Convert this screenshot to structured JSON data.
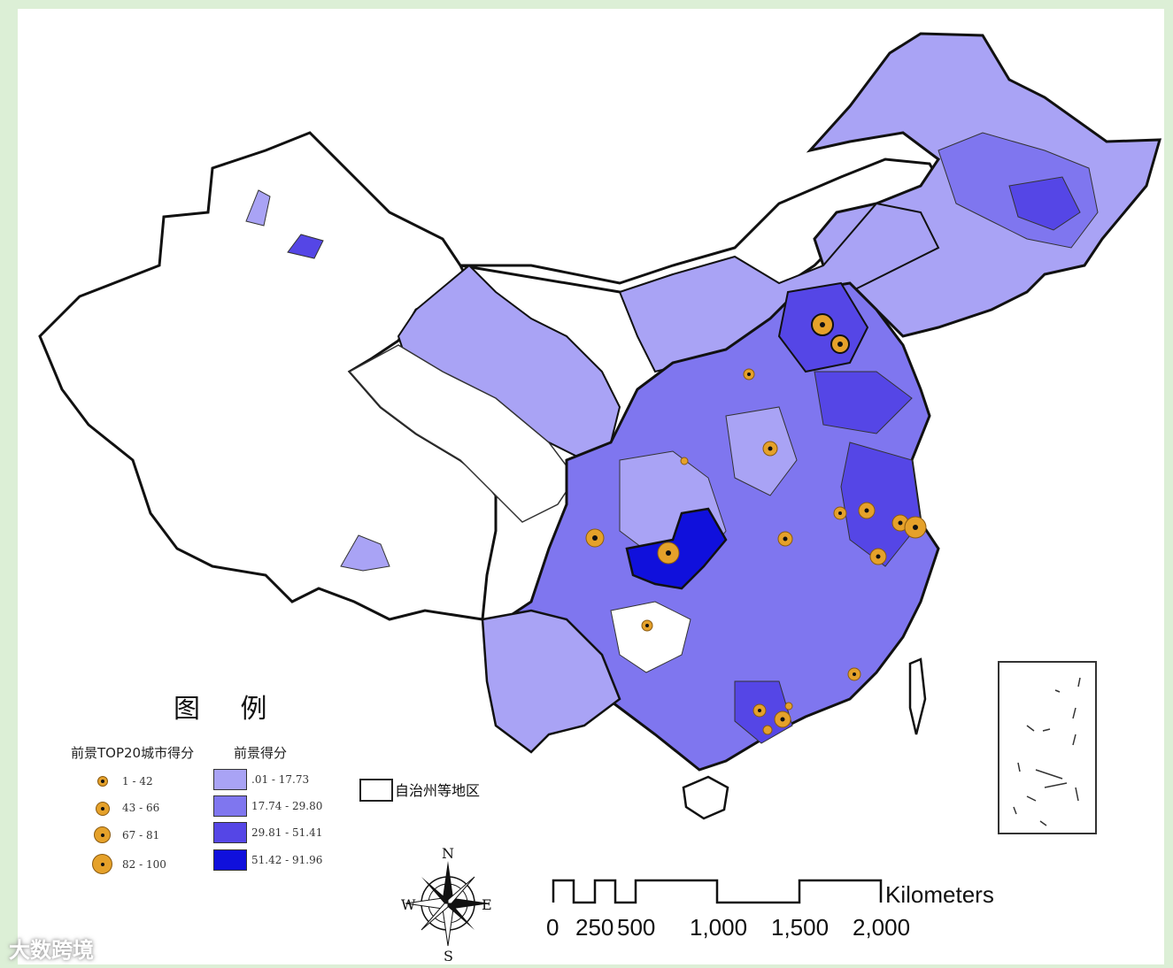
{
  "legend": {
    "title": "图    例",
    "top20": {
      "heading": "前景TOP20城市得分",
      "items": [
        "1 - 42",
        "43 - 66",
        "67 - 81",
        "82 - 100"
      ]
    },
    "score": {
      "heading": "前景得分",
      "items": [
        ".01 - 17.73",
        "17.74 - 29.80",
        "29.81 - 51.41",
        "51.42 - 91.96"
      ],
      "colors": [
        "#a9a3f5",
        "#7f76ef",
        "#5546e6",
        "#1010dc"
      ]
    },
    "autonomous": "自治州等地区"
  },
  "scale": {
    "ticks": [
      "0",
      "250",
      "500",
      "1,000",
      "1,500",
      "2,000"
    ],
    "unit": "Kilometers"
  },
  "compass": {
    "n": "N",
    "s": "S",
    "e": "E",
    "w": "W"
  },
  "watermark": "大数跨境",
  "colors": {
    "background": "#dcefd6",
    "marker": "#e5a12a",
    "outline": "#111111"
  }
}
